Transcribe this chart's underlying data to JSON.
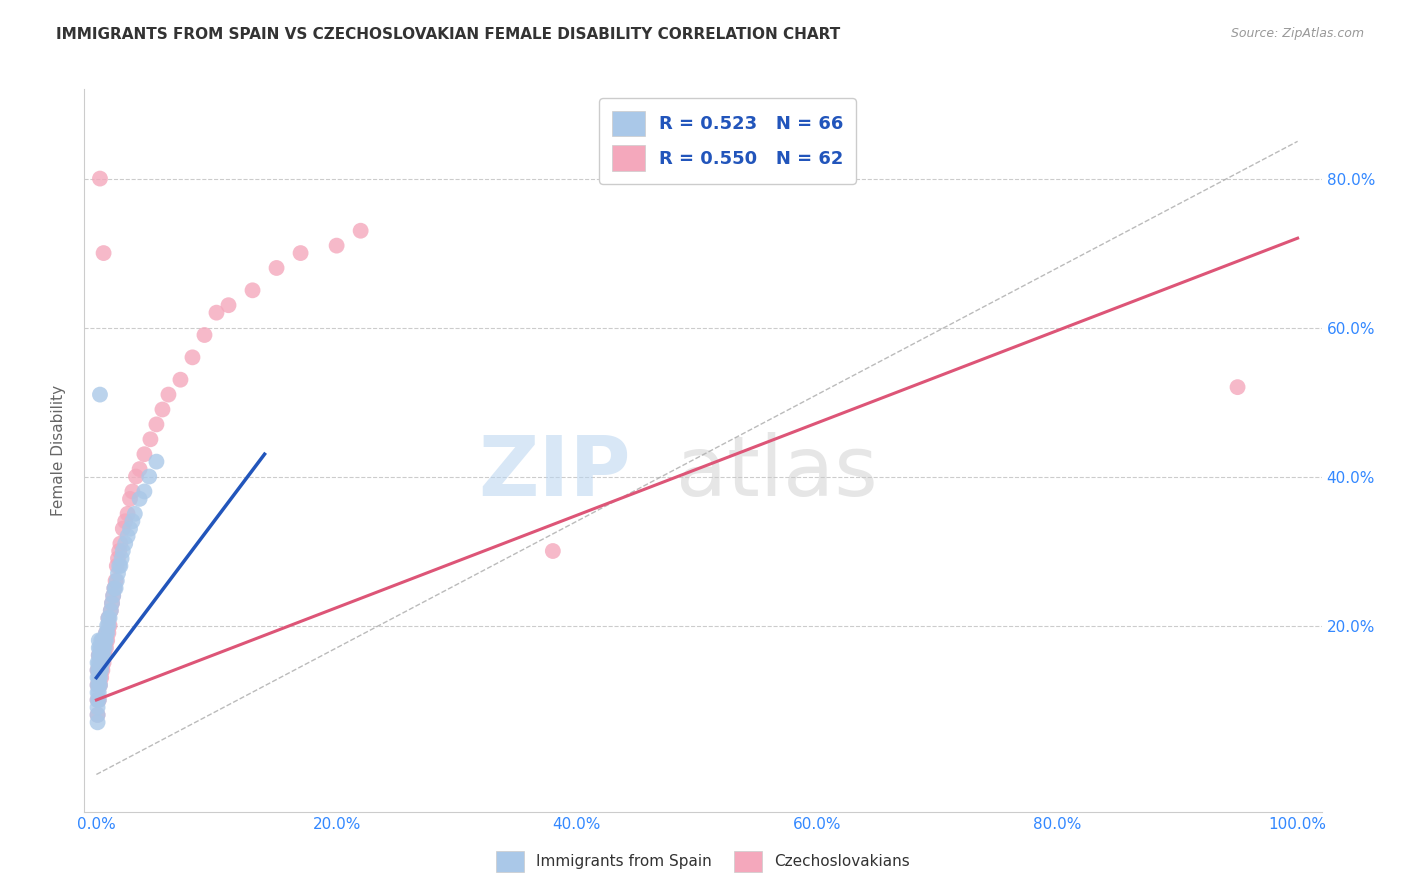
{
  "title": "IMMIGRANTS FROM SPAIN VS CZECHOSLOVAKIAN FEMALE DISABILITY CORRELATION CHART",
  "source": "Source: ZipAtlas.com",
  "ylabel": "Female Disability",
  "blue_color": "#aac8e8",
  "pink_color": "#f4a8bc",
  "blue_line_color": "#2255bb",
  "pink_line_color": "#dd5577",
  "background_color": "#ffffff",
  "grid_color": "#cccccc",
  "title_color": "#333333",
  "tick_color": "#3388ff",
  "watermark_zip_color": "#b8d4f0",
  "watermark_atlas_color": "#c8c8c8",
  "legend_text_color": "#2255bb",
  "legend_r1": "R = 0.523",
  "legend_n1": "N = 66",
  "legend_r2": "R = 0.550",
  "legend_n2": "N = 62",
  "bottom_label1": "Immigrants from Spain",
  "bottom_label2": "Czechoslovakians",
  "spain_x": [
    0.001,
    0.001,
    0.001,
    0.001,
    0.001,
    0.001,
    0.001,
    0.001,
    0.001,
    0.002,
    0.002,
    0.002,
    0.002,
    0.002,
    0.002,
    0.002,
    0.002,
    0.002,
    0.003,
    0.003,
    0.003,
    0.003,
    0.003,
    0.003,
    0.003,
    0.004,
    0.004,
    0.004,
    0.004,
    0.004,
    0.005,
    0.005,
    0.005,
    0.005,
    0.006,
    0.006,
    0.006,
    0.007,
    0.007,
    0.008,
    0.008,
    0.009,
    0.009,
    0.01,
    0.01,
    0.011,
    0.012,
    0.013,
    0.014,
    0.015,
    0.016,
    0.017,
    0.018,
    0.019,
    0.02,
    0.021,
    0.022,
    0.024,
    0.026,
    0.028,
    0.03,
    0.032,
    0.036,
    0.04,
    0.044,
    0.05
  ],
  "spain_y": [
    0.07,
    0.08,
    0.09,
    0.1,
    0.11,
    0.12,
    0.13,
    0.14,
    0.15,
    0.1,
    0.11,
    0.12,
    0.13,
    0.14,
    0.15,
    0.16,
    0.17,
    0.18,
    0.12,
    0.13,
    0.14,
    0.15,
    0.16,
    0.17,
    0.51,
    0.14,
    0.15,
    0.16,
    0.17,
    0.18,
    0.15,
    0.16,
    0.17,
    0.18,
    0.16,
    0.17,
    0.18,
    0.17,
    0.18,
    0.18,
    0.19,
    0.19,
    0.2,
    0.2,
    0.21,
    0.21,
    0.22,
    0.23,
    0.24,
    0.25,
    0.25,
    0.26,
    0.27,
    0.28,
    0.28,
    0.29,
    0.3,
    0.31,
    0.32,
    0.33,
    0.34,
    0.35,
    0.37,
    0.38,
    0.4,
    0.42
  ],
  "czech_x": [
    0.001,
    0.001,
    0.001,
    0.001,
    0.002,
    0.002,
    0.002,
    0.002,
    0.003,
    0.003,
    0.003,
    0.004,
    0.004,
    0.004,
    0.005,
    0.005,
    0.005,
    0.006,
    0.006,
    0.007,
    0.007,
    0.008,
    0.008,
    0.009,
    0.01,
    0.01,
    0.011,
    0.012,
    0.013,
    0.014,
    0.015,
    0.016,
    0.017,
    0.018,
    0.019,
    0.02,
    0.022,
    0.024,
    0.026,
    0.028,
    0.03,
    0.033,
    0.036,
    0.04,
    0.045,
    0.05,
    0.055,
    0.06,
    0.07,
    0.08,
    0.09,
    0.1,
    0.11,
    0.13,
    0.15,
    0.17,
    0.2,
    0.22,
    0.38,
    0.95,
    0.003,
    0.006
  ],
  "czech_y": [
    0.08,
    0.1,
    0.12,
    0.14,
    0.1,
    0.12,
    0.14,
    0.16,
    0.12,
    0.14,
    0.16,
    0.13,
    0.15,
    0.17,
    0.14,
    0.16,
    0.18,
    0.15,
    0.17,
    0.16,
    0.18,
    0.17,
    0.19,
    0.18,
    0.19,
    0.21,
    0.2,
    0.22,
    0.23,
    0.24,
    0.25,
    0.26,
    0.28,
    0.29,
    0.3,
    0.31,
    0.33,
    0.34,
    0.35,
    0.37,
    0.38,
    0.4,
    0.41,
    0.43,
    0.45,
    0.47,
    0.49,
    0.51,
    0.53,
    0.56,
    0.59,
    0.62,
    0.63,
    0.65,
    0.68,
    0.7,
    0.71,
    0.73,
    0.3,
    0.52,
    0.8,
    0.7
  ],
  "blue_line_x": [
    0.0,
    0.14
  ],
  "blue_line_y": [
    0.13,
    0.43
  ],
  "pink_line_x": [
    0.0,
    1.0
  ],
  "pink_line_y": [
    0.1,
    0.72
  ],
  "ref_line_x": [
    0.0,
    1.0
  ],
  "ref_line_y": [
    0.0,
    0.85
  ],
  "xlim": [
    -0.01,
    1.02
  ],
  "ylim": [
    -0.05,
    0.92
  ],
  "xticks": [
    0.0,
    0.2,
    0.4,
    0.6,
    0.8,
    1.0
  ],
  "xtick_labels": [
    "0.0%",
    "20.0%",
    "40.0%",
    "60.0%",
    "80.0%",
    "100.0%"
  ],
  "yticks": [
    0.2,
    0.4,
    0.6,
    0.8
  ],
  "ytick_labels": [
    "20.0%",
    "40.0%",
    "60.0%",
    "80.0%"
  ]
}
